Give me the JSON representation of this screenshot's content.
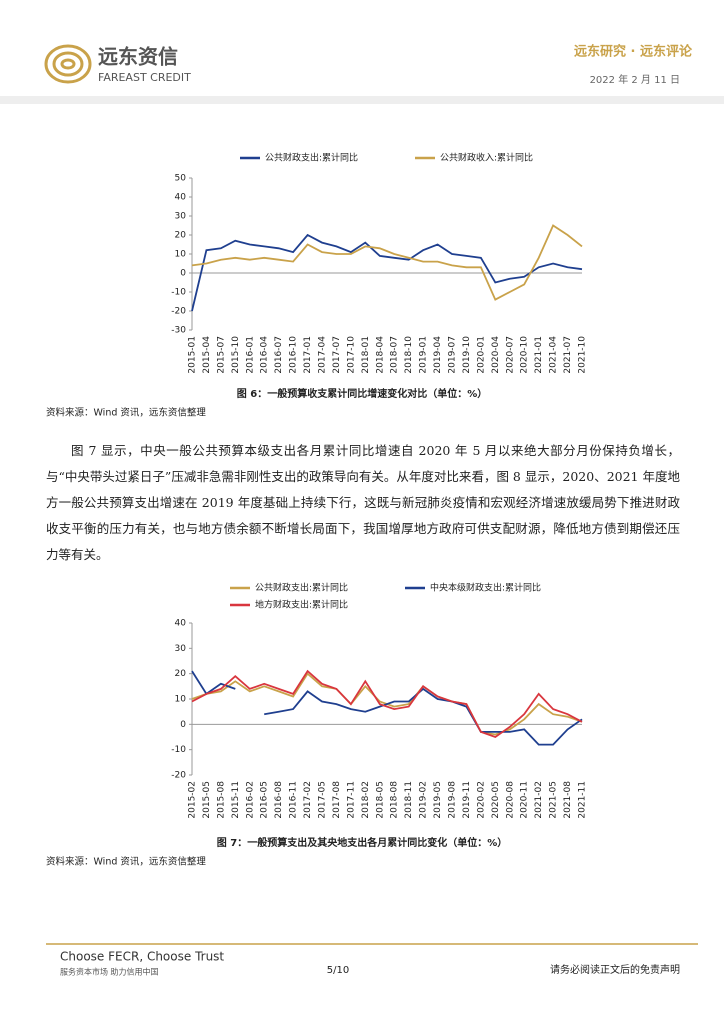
{
  "header": {
    "brand": "远东资信",
    "brand_en": "FAREAST CREDIT",
    "column": "远东研究 · 远东评论",
    "date": "2022 年 2 月 11 日"
  },
  "chart_data": [
    {
      "type": "line",
      "caption": "图 6：一般预算收支累计同比增速变化对比（单位：%）",
      "source": "资料来源：Wind 资讯，远东资信整理",
      "categories": [
        "2015-01",
        "2015-04",
        "2015-07",
        "2015-10",
        "2016-01",
        "2016-04",
        "2016-07",
        "2016-10",
        "2017-01",
        "2017-04",
        "2017-07",
        "2017-10",
        "2018-01",
        "2018-04",
        "2018-07",
        "2018-10",
        "2019-01",
        "2019-04",
        "2019-07",
        "2019-10",
        "2020-01",
        "2020-04",
        "2020-07",
        "2020-10",
        "2021-01",
        "2021-04",
        "2021-07",
        "2021-10"
      ],
      "series": [
        {
          "name": "公共财政支出:累计同比",
          "color": "#1f3f8f",
          "values": [
            -20,
            12,
            13,
            17,
            15,
            14,
            13,
            11,
            20,
            16,
            14,
            11,
            16,
            9,
            8,
            7,
            12,
            15,
            10,
            9,
            8,
            -5,
            -3,
            -2,
            3,
            5,
            3,
            2
          ]
        },
        {
          "name": "公共财政收入:累计同比",
          "color": "#c9a24a",
          "values": [
            4,
            5,
            7,
            8,
            7,
            8,
            7,
            6,
            15,
            11,
            10,
            10,
            14,
            13,
            10,
            8,
            6,
            6,
            4,
            3,
            3,
            -14,
            -10,
            -6,
            8,
            25,
            20,
            14
          ]
        }
      ],
      "ylim": [
        -30,
        50
      ],
      "yticks": [
        -30,
        -20,
        -10,
        0,
        10,
        20,
        30,
        40,
        50
      ]
    },
    {
      "type": "line",
      "caption": "图 7：一般预算支出及其央地支出各月累计同比变化（单位：%）",
      "source": "资料来源：Wind 资讯，远东资信整理",
      "categories": [
        "2015-02",
        "2015-05",
        "2015-08",
        "2015-11",
        "2016-02",
        "2016-05",
        "2016-08",
        "2016-11",
        "2017-02",
        "2017-05",
        "2017-08",
        "2017-11",
        "2018-02",
        "2018-05",
        "2018-08",
        "2018-11",
        "2019-02",
        "2019-05",
        "2019-08",
        "2019-11",
        "2020-02",
        "2020-05",
        "2020-08",
        "2020-11",
        "2021-02",
        "2021-05",
        "2021-08",
        "2021-11"
      ],
      "series": [
        {
          "name": "公共财政支出:累计同比",
          "color": "#c9a24a",
          "values": [
            10,
            12,
            13,
            17,
            13,
            15,
            13,
            11,
            20,
            15,
            14,
            8,
            15,
            9,
            7,
            8,
            15,
            11,
            9,
            8,
            -3,
            -4,
            -2,
            2,
            8,
            4,
            3,
            1
          ]
        },
        {
          "name": "中央本级财政支出:累计同比",
          "color": "#1f3f8f",
          "values": [
            21,
            12,
            16,
            14,
            null,
            4,
            5,
            6,
            13,
            9,
            8,
            6,
            5,
            7,
            9,
            9,
            14,
            10,
            9,
            7,
            -3,
            -3,
            -3,
            -2,
            -8,
            -8,
            -2,
            2
          ]
        },
        {
          "name": "地方财政支出:累计同比",
          "color": "#d9363e",
          "values": [
            9,
            12,
            14,
            19,
            14,
            16,
            14,
            12,
            21,
            16,
            14,
            8,
            17,
            8,
            6,
            7,
            15,
            11,
            9,
            8,
            -3,
            -5,
            -1,
            4,
            12,
            6,
            4,
            1
          ]
        }
      ],
      "ylim": [
        -20,
        40
      ],
      "yticks": [
        -20,
        -10,
        0,
        10,
        20,
        30,
        40
      ]
    }
  ],
  "paragraph": "图 7 显示，中央一般公共预算本级支出各月累计同比增速自 2020 年 5 月以来绝大部分月份保持负增长，与“中央带头过紧日子”压减非急需非刚性支出的政策导向有关。从年度对比来看，图 8 显示，2020、2021 年度地方一般公共预算支出增速在 2019 年度基础上持续下行，这既与新冠肺炎疫情和宏观经济增速放缓局势下推进财政收支平衡的压力有关，也与地方债余额不断增长局面下，我国增厚地方政府可供支配财源，降低地方债到期偿还压力等有关。",
  "footer": {
    "slogan": "Choose FECR, Choose Trust",
    "tagline": "服务资本市场  助力信用中国",
    "page": "5/10",
    "disclaimer": "请务必阅读正文后的免责声明"
  }
}
